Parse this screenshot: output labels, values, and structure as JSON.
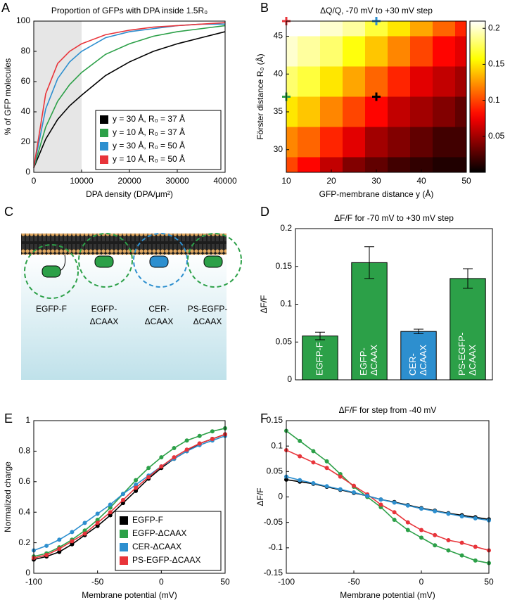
{
  "chart_data": [
    {
      "type": "line",
      "panel": "A",
      "title": "Proportion of GFPs with DPA inside 1.5R₀",
      "xlabel": "DPA density (DPA/μm²)",
      "ylabel": "% of GFP molecules",
      "x": [
        0,
        2500,
        5000,
        7500,
        10000,
        15000,
        20000,
        25000,
        30000,
        35000,
        40000
      ],
      "xlim": [
        0,
        40000
      ],
      "xticks": [
        0,
        10000,
        20000,
        30000,
        40000
      ],
      "ylim": [
        0,
        100
      ],
      "yticks": [
        0,
        20,
        40,
        60,
        80,
        100
      ],
      "highlight_xrange": [
        0,
        10000
      ],
      "legend": "lower right",
      "series": [
        {
          "name": "y = 30 Å, R₀ = 37 Å",
          "color": "#000000",
          "values": [
            3,
            22,
            35,
            44,
            51,
            64,
            73,
            80,
            85,
            89,
            93
          ]
        },
        {
          "name": "y = 10 Å, R₀ = 37 Å",
          "color": "#2ca048",
          "values": [
            3,
            30,
            47,
            58,
            66,
            78,
            85,
            90,
            93,
            95,
            97
          ]
        },
        {
          "name": "y = 30 Å, R₀ = 50 Å",
          "color": "#2d8fcf",
          "values": [
            3,
            42,
            62,
            73,
            80,
            89,
            93,
            95,
            97,
            98,
            98
          ]
        },
        {
          "name": "y = 10 Å, R₀ = 50 Å",
          "color": "#e8343a",
          "values": [
            3,
            52,
            72,
            80,
            85,
            91,
            94,
            96,
            97,
            98,
            99
          ]
        }
      ]
    },
    {
      "type": "heatmap",
      "panel": "B",
      "title": "ΔQ/Q, -70 mV to +30 mV step",
      "xlabel": "GFP-membrane distance y (Å)",
      "ylabel": "Förster distance R₀ (Å)",
      "x": [
        10,
        15,
        20,
        25,
        30,
        35,
        40,
        45,
        50
      ],
      "y": [
        47,
        43,
        39,
        35,
        31,
        27
      ],
      "z": [
        [
          0.21,
          0.21,
          0.2,
          0.19,
          0.17,
          0.15,
          0.13,
          0.11,
          0.09
        ],
        [
          0.2,
          0.19,
          0.18,
          0.16,
          0.14,
          0.12,
          0.1,
          0.08,
          0.07
        ],
        [
          0.18,
          0.17,
          0.15,
          0.13,
          0.11,
          0.09,
          0.07,
          0.06,
          0.05
        ],
        [
          0.15,
          0.14,
          0.12,
          0.1,
          0.08,
          0.06,
          0.05,
          0.04,
          0.03
        ],
        [
          0.12,
          0.11,
          0.09,
          0.07,
          0.05,
          0.04,
          0.03,
          0.02,
          0.02
        ],
        [
          0.1,
          0.08,
          0.06,
          0.04,
          0.03,
          0.02,
          0.015,
          0.01,
          0.01
        ]
      ],
      "xlim": [
        10,
        50
      ],
      "xticks": [
        10,
        20,
        30,
        40,
        50
      ],
      "ylim": [
        27,
        47
      ],
      "yticks": [
        30,
        35,
        40,
        45
      ],
      "colormap": "hot",
      "clim": [
        0,
        0.21
      ],
      "cticks": [
        0.05,
        0.1,
        0.15,
        0.2
      ],
      "points": [
        {
          "x": 10,
          "y": 47,
          "color": "#e8343a"
        },
        {
          "x": 30,
          "y": 47,
          "color": "#2d8fcf"
        },
        {
          "x": 10,
          "y": 37,
          "color": "#2ca048"
        },
        {
          "x": 30,
          "y": 37,
          "color": "#000000"
        }
      ]
    },
    {
      "type": "bar",
      "panel": "D",
      "title": "ΔF/F for -70 mV to +30 mV step",
      "ylabel": "ΔF/F",
      "categories": [
        [
          "EGFP-F"
        ],
        [
          "EGFP-",
          "ΔCAAX"
        ],
        [
          "CER-",
          "ΔCAAX"
        ],
        [
          "PS-EGFP-",
          "ΔCAAX"
        ]
      ],
      "values": [
        0.058,
        0.155,
        0.064,
        0.134
      ],
      "errors": [
        0.005,
        0.021,
        0.003,
        0.013
      ],
      "colors": [
        "#2ca048",
        "#2ca048",
        "#2d8fcf",
        "#2ca048"
      ],
      "ylim": [
        0,
        0.2
      ],
      "yticks": [
        0,
        0.05,
        0.1,
        0.15,
        0.2
      ]
    },
    {
      "type": "line",
      "panel": "E",
      "xlabel": "Membrane potential (mV)",
      "ylabel": "Normalized charge",
      "markers": true,
      "x": [
        -100,
        -90,
        -80,
        -70,
        -60,
        -50,
        -40,
        -30,
        -20,
        -10,
        0,
        10,
        20,
        30,
        40,
        50
      ],
      "xlim": [
        -100,
        50
      ],
      "xticks": [
        -100,
        -50,
        0,
        50
      ],
      "ylim": [
        0,
        1
      ],
      "yticks": [
        0,
        0.2,
        0.4,
        0.6,
        0.8,
        1
      ],
      "legend": "lower right",
      "series": [
        {
          "name": "EGFP-F",
          "color": "#000000",
          "values": [
            0.09,
            0.11,
            0.14,
            0.19,
            0.25,
            0.31,
            0.38,
            0.46,
            0.54,
            0.62,
            0.69,
            0.75,
            0.8,
            0.85,
            0.88,
            0.91
          ]
        },
        {
          "name": "EGFP-ΔCAAX",
          "color": "#2ca048",
          "values": [
            0.11,
            0.13,
            0.17,
            0.22,
            0.28,
            0.35,
            0.43,
            0.52,
            0.61,
            0.69,
            0.76,
            0.82,
            0.87,
            0.9,
            0.93,
            0.95
          ]
        },
        {
          "name": "CER-ΔCAAX",
          "color": "#2d8fcf",
          "values": [
            0.15,
            0.18,
            0.22,
            0.27,
            0.33,
            0.39,
            0.45,
            0.52,
            0.58,
            0.64,
            0.7,
            0.75,
            0.8,
            0.84,
            0.87,
            0.9
          ]
        },
        {
          "name": "PS-EGFP-ΔCAAX",
          "color": "#e8343a",
          "values": [
            0.1,
            0.12,
            0.16,
            0.21,
            0.26,
            0.33,
            0.4,
            0.48,
            0.56,
            0.63,
            0.7,
            0.76,
            0.81,
            0.85,
            0.88,
            0.91
          ]
        }
      ]
    },
    {
      "type": "line",
      "panel": "F",
      "title": "ΔF/F for step from -40 mV",
      "xlabel": "Membrane potential (mV)",
      "ylabel": "ΔF/F",
      "markers": true,
      "x": [
        -100,
        -90,
        -80,
        -70,
        -60,
        -50,
        -40,
        -30,
        -20,
        -10,
        0,
        10,
        20,
        30,
        40,
        50
      ],
      "xlim": [
        -100,
        50
      ],
      "xticks": [
        -100,
        -50,
        0,
        50
      ],
      "ylim": [
        -0.15,
        0.15
      ],
      "yticks": [
        -0.15,
        -0.1,
        -0.05,
        0,
        0.05,
        0.1,
        0.15
      ],
      "series": [
        {
          "color": "#2ca048",
          "values": [
            0.13,
            0.11,
            0.09,
            0.07,
            0.045,
            0.02,
            0,
            -0.02,
            -0.045,
            -0.065,
            -0.08,
            -0.095,
            -0.105,
            -0.115,
            -0.125,
            -0.13
          ]
        },
        {
          "color": "#e8343a",
          "values": [
            0.092,
            0.08,
            0.068,
            0.057,
            0.04,
            0.022,
            0.005,
            -0.015,
            -0.03,
            -0.05,
            -0.065,
            -0.075,
            -0.085,
            -0.09,
            -0.098,
            -0.105
          ]
        },
        {
          "color": "#000000",
          "values": [
            0.034,
            0.03,
            0.026,
            0.02,
            0.014,
            0.008,
            0.002,
            -0.005,
            -0.01,
            -0.016,
            -0.022,
            -0.027,
            -0.032,
            -0.036,
            -0.04,
            -0.044
          ]
        },
        {
          "color": "#2d8fcf",
          "values": [
            0.04,
            0.033,
            0.027,
            0.021,
            0.015,
            0.009,
            0.002,
            -0.005,
            -0.011,
            -0.017,
            -0.023,
            -0.028,
            -0.033,
            -0.038,
            -0.042,
            -0.046
          ]
        }
      ]
    }
  ],
  "diagram": {
    "panel": "C",
    "labels": [
      [
        "EGFP-F"
      ],
      [
        "EGFP-",
        "ΔCAAX"
      ],
      [
        "CER-",
        "ΔCAAX"
      ],
      [
        "PS-EGFP-",
        "ΔCAAX"
      ]
    ]
  }
}
